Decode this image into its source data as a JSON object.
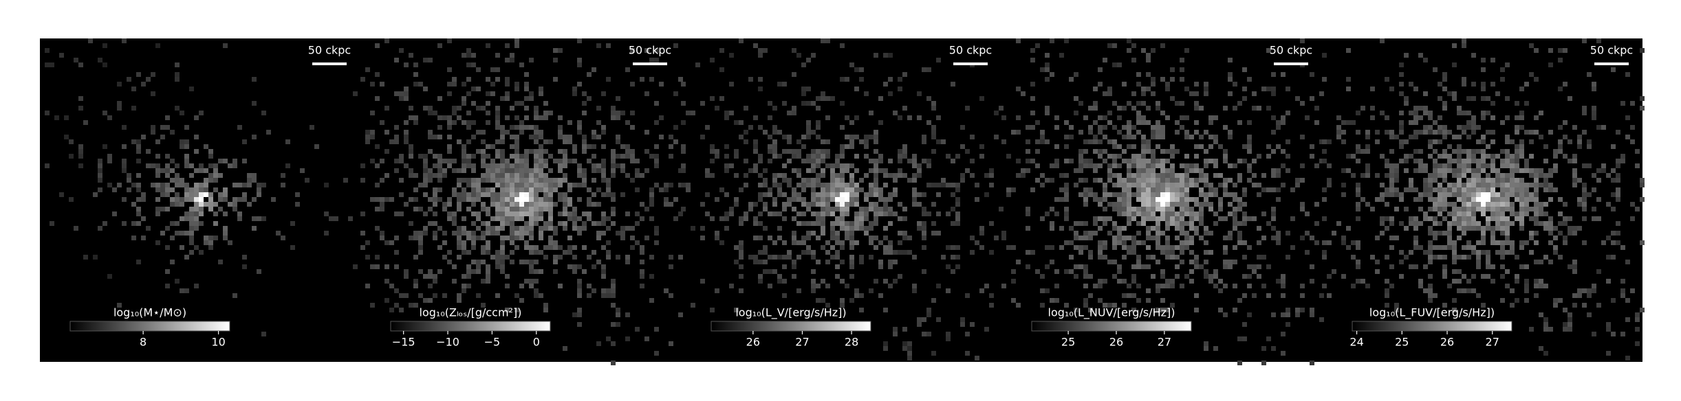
{
  "chart_data": [
    {
      "type": "image",
      "scale_label": "50 ckpc",
      "colorbar_label": "log₁₀(M⋆/M⊙)",
      "clim": [
        6.06,
        10.3
      ],
      "cticks": [
        8,
        10
      ]
    },
    {
      "type": "image",
      "scale_label": "50 ckpc",
      "colorbar_label": "log₁₀(Zₗₒₛ/[g/ccm²])",
      "clim": [
        -16.45,
        1.57
      ],
      "cticks": [
        {
          "value": -15,
          "label": "−15"
        },
        {
          "value": -10,
          "label": "−10"
        },
        {
          "value": -5,
          "label": "−5"
        },
        0
      ]
    },
    {
      "type": "image",
      "scale_label": "50 ckpc",
      "colorbar_label": "log₁₀(L_V/[erg/s/Hz])",
      "clim": [
        25.15,
        28.39
      ],
      "cticks": [
        26,
        27,
        28
      ]
    },
    {
      "type": "image",
      "scale_label": "50 ckpc",
      "colorbar_label": "log₁₀(L_NUV/[erg/s/Hz])",
      "clim": [
        24.24,
        27.56
      ],
      "cticks": [
        25,
        26,
        27
      ]
    },
    {
      "type": "image",
      "scale_label": "50 ckpc",
      "colorbar_label": "log₁₀(L_FUV/[erg/s/Hz])",
      "clim": [
        23.9,
        27.43
      ],
      "cticks": [
        24,
        25,
        26,
        27
      ]
    }
  ]
}
